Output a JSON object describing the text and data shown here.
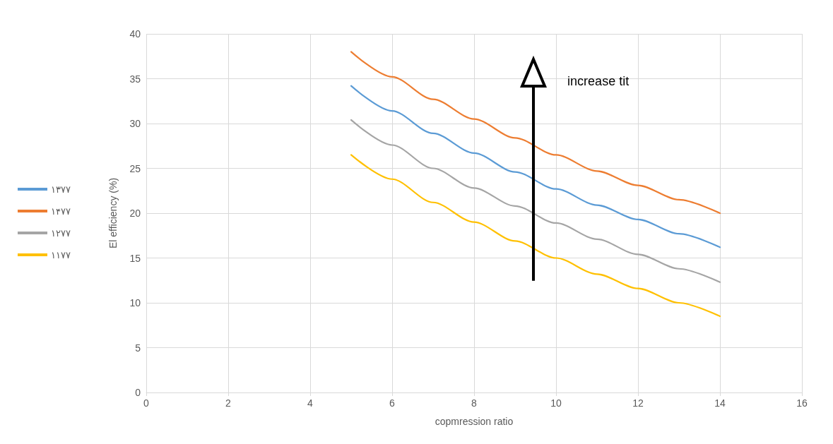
{
  "chart_data": {
    "type": "line",
    "xlabel": "copmression ratio",
    "ylabel": "El efficiency (%)",
    "x": [
      5,
      6,
      7,
      8,
      9,
      10,
      11,
      12,
      13,
      14
    ],
    "series": [
      {
        "name": "۱۳۷۷",
        "color": "#5b9bd5",
        "values": [
          34.2,
          31.4,
          28.9,
          26.7,
          24.6,
          22.7,
          20.9,
          19.3,
          17.7,
          16.2
        ]
      },
      {
        "name": "۱۴۷۷",
        "color": "#ed7d31",
        "values": [
          38.0,
          35.2,
          32.7,
          30.5,
          28.4,
          26.5,
          24.7,
          23.1,
          21.5,
          20.0
        ]
      },
      {
        "name": "۱۲۷۷",
        "color": "#a5a5a5",
        "values": [
          30.4,
          27.6,
          25.0,
          22.8,
          20.8,
          18.9,
          17.1,
          15.4,
          13.8,
          12.3
        ]
      },
      {
        "name": "۱۱۷۷",
        "color": "#ffc000",
        "values": [
          26.5,
          23.8,
          21.2,
          19.0,
          16.9,
          15.0,
          13.2,
          11.6,
          10.0,
          8.5
        ]
      }
    ],
    "xlim": [
      0,
      16
    ],
    "xticks": [
      0,
      2,
      4,
      6,
      8,
      10,
      12,
      14,
      16
    ],
    "ylim": [
      0,
      40
    ],
    "yticks": [
      0,
      5,
      10,
      15,
      20,
      25,
      30,
      35,
      40
    ],
    "grid": true,
    "legend": "left",
    "marker": "none",
    "line_style": "solid",
    "annotations": [
      "increase tit"
    ]
  }
}
